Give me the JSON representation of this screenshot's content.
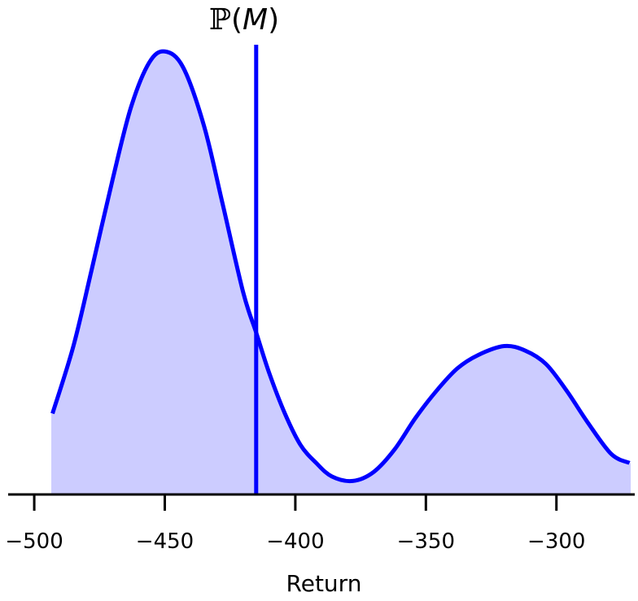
{
  "chart_data": {
    "type": "area",
    "xlabel": "Return",
    "ylabel": "",
    "xlim": [
      -510,
      -270
    ],
    "ylim": [
      0,
      1.0
    ],
    "xticks": [
      -500,
      -450,
      -400,
      -350,
      -300
    ],
    "xtick_labels": [
      "−500",
      "−450",
      "−400",
      "−350",
      "−300"
    ],
    "grid": false,
    "series": [
      {
        "x": [
          -493,
          -485,
          -478,
          -470,
          -463,
          -456,
          -450,
          -443,
          -435,
          -428,
          -420,
          -415,
          -410,
          -404,
          -398,
          -392,
          -386,
          -378,
          -370,
          -362,
          -354,
          -346,
          -338,
          -330,
          -320,
          -312,
          -304,
          -296,
          -288,
          -279,
          -272
        ],
        "y": [
          0.18,
          0.33,
          0.5,
          0.7,
          0.86,
          0.96,
          0.985,
          0.95,
          0.82,
          0.65,
          0.45,
          0.36,
          0.27,
          0.18,
          0.11,
          0.07,
          0.04,
          0.03,
          0.05,
          0.1,
          0.17,
          0.23,
          0.28,
          0.31,
          0.33,
          0.32,
          0.29,
          0.23,
          0.16,
          0.09,
          0.07
        ],
        "color": "#0000ff",
        "fill": "#ccccff"
      }
    ],
    "vline": {
      "x": -415,
      "color": "#0000ff"
    },
    "annotations": {
      "vline_label_bb": "ℙ",
      "vline_label_open": "(",
      "vline_label_var": "M",
      "vline_label_close": ")"
    }
  }
}
